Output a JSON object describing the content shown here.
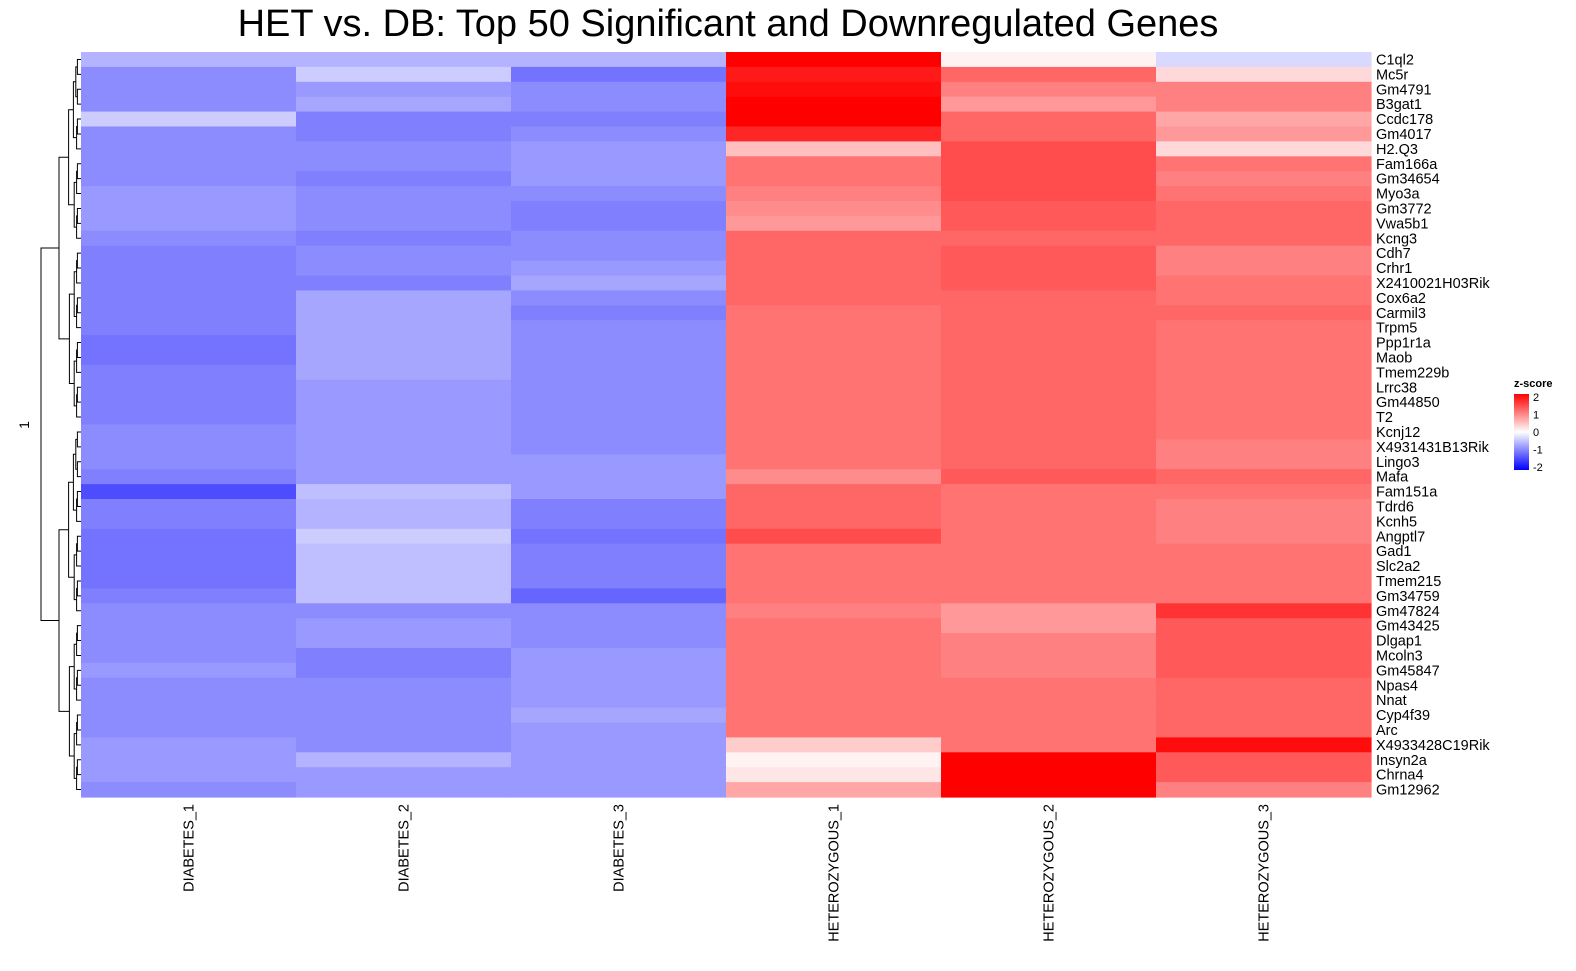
{
  "title": "HET vs. DB: Top 50 Significant and Downregulated Genes",
  "chart_data": {
    "type": "heatmap",
    "title": "HET vs. DB: Top 50 Significant and Downregulated Genes",
    "columns": [
      "DIABETES_1",
      "DIABETES_2",
      "DIABETES_3",
      "HETEROZYGOUS_1",
      "HETEROZYGOUS_2",
      "HETEROZYGOUS_3"
    ],
    "rows": [
      "C1ql2",
      "Mc5r",
      "Gm4791",
      "B3gat1",
      "Ccdc178",
      "Gm4017",
      "H2.Q3",
      "Fam166a",
      "Gm34654",
      "Myo3a",
      "Gm3772",
      "Vwa5b1",
      "Kcng3",
      "Cdh7",
      "Crhr1",
      "X2410021H03Rik",
      "Cox6a2",
      "Carmil3",
      "Trpm5",
      "Ppp1r1a",
      "Maob",
      "Tmem229b",
      "Lrrc38",
      "Gm44850",
      "T2",
      "Kcnj12",
      "X4931431B13Rik",
      "Lingo3",
      "Mafa",
      "Fam151a",
      "Tdrd6",
      "Kcnh5",
      "Angptl7",
      "Gad1",
      "Slc2a2",
      "Tmem215",
      "Gm34759",
      "Gm47824",
      "Gm43425",
      "Dlgap1",
      "Mcoln3",
      "Gm45847",
      "Npas4",
      "Nnat",
      "Cyp4f39",
      "Arc",
      "X4933428C19Rik",
      "Insyn2a",
      "Chrna4",
      "Gm12962"
    ],
    "values": [
      [
        -0.6,
        -0.6,
        -0.6,
        2.0,
        0.1,
        -0.3
      ],
      [
        -0.9,
        -0.4,
        -1.1,
        1.8,
        1.2,
        0.3
      ],
      [
        -0.9,
        -0.8,
        -0.9,
        1.9,
        1.0,
        1.0
      ],
      [
        -0.9,
        -0.7,
        -0.9,
        2.1,
        0.8,
        1.0
      ],
      [
        -0.4,
        -1.0,
        -1.0,
        2.0,
        1.2,
        0.7
      ],
      [
        -0.9,
        -1.0,
        -0.9,
        1.7,
        1.2,
        0.8
      ],
      [
        -0.9,
        -0.9,
        -0.8,
        0.5,
        1.4,
        0.3
      ],
      [
        -0.9,
        -0.9,
        -0.8,
        1.1,
        1.4,
        1.1
      ],
      [
        -0.9,
        -1.0,
        -0.8,
        1.1,
        1.4,
        1.0
      ],
      [
        -0.8,
        -0.9,
        -0.9,
        1.0,
        1.4,
        1.1
      ],
      [
        -0.8,
        -0.9,
        -1.0,
        0.9,
        1.3,
        1.2
      ],
      [
        -0.8,
        -0.9,
        -1.0,
        0.8,
        1.3,
        1.2
      ],
      [
        -0.9,
        -1.0,
        -0.9,
        1.2,
        1.2,
        1.2
      ],
      [
        -1.0,
        -0.9,
        -0.9,
        1.2,
        1.3,
        1.0
      ],
      [
        -1.0,
        -0.9,
        -0.8,
        1.2,
        1.3,
        1.0
      ],
      [
        -1.0,
        -1.0,
        -0.7,
        1.2,
        1.3,
        1.1
      ],
      [
        -1.0,
        -0.7,
        -0.9,
        1.2,
        1.2,
        1.1
      ],
      [
        -1.0,
        -0.7,
        -1.0,
        1.1,
        1.2,
        1.2
      ],
      [
        -1.0,
        -0.7,
        -0.9,
        1.1,
        1.2,
        1.1
      ],
      [
        -1.1,
        -0.7,
        -0.9,
        1.1,
        1.2,
        1.1
      ],
      [
        -1.1,
        -0.7,
        -0.9,
        1.1,
        1.2,
        1.1
      ],
      [
        -1.0,
        -0.7,
        -0.9,
        1.1,
        1.2,
        1.1
      ],
      [
        -1.0,
        -0.8,
        -0.9,
        1.1,
        1.2,
        1.1
      ],
      [
        -1.0,
        -0.8,
        -0.9,
        1.1,
        1.2,
        1.1
      ],
      [
        -1.0,
        -0.8,
        -0.9,
        1.1,
        1.2,
        1.1
      ],
      [
        -0.9,
        -0.8,
        -0.9,
        1.1,
        1.2,
        1.1
      ],
      [
        -0.9,
        -0.8,
        -0.9,
        1.1,
        1.2,
        1.0
      ],
      [
        -0.9,
        -0.8,
        -0.8,
        1.1,
        1.2,
        1.0
      ],
      [
        -1.0,
        -0.8,
        -0.8,
        0.9,
        1.3,
        1.2
      ],
      [
        -1.4,
        -0.5,
        -0.8,
        1.2,
        1.1,
        1.1
      ],
      [
        -1.0,
        -0.6,
        -1.0,
        1.2,
        1.1,
        1.0
      ],
      [
        -1.0,
        -0.6,
        -1.0,
        1.2,
        1.1,
        1.0
      ],
      [
        -1.1,
        -0.4,
        -1.1,
        1.4,
        1.1,
        1.0
      ],
      [
        -1.1,
        -0.5,
        -1.0,
        1.1,
        1.1,
        1.1
      ],
      [
        -1.1,
        -0.5,
        -1.0,
        1.1,
        1.1,
        1.1
      ],
      [
        -1.1,
        -0.5,
        -1.0,
        1.1,
        1.1,
        1.1
      ],
      [
        -1.0,
        -0.5,
        -1.2,
        1.1,
        1.1,
        1.1
      ],
      [
        -0.9,
        -0.9,
        -0.9,
        1.0,
        0.8,
        1.6
      ],
      [
        -0.9,
        -0.8,
        -0.9,
        1.1,
        0.8,
        1.3
      ],
      [
        -0.9,
        -0.8,
        -0.9,
        1.1,
        1.0,
        1.3
      ],
      [
        -0.9,
        -1.0,
        -0.8,
        1.1,
        1.0,
        1.3
      ],
      [
        -0.8,
        -1.0,
        -0.8,
        1.1,
        1.0,
        1.3
      ],
      [
        -0.9,
        -0.9,
        -0.8,
        1.1,
        1.1,
        1.2
      ],
      [
        -0.9,
        -0.9,
        -0.8,
        1.1,
        1.1,
        1.2
      ],
      [
        -0.9,
        -0.9,
        -0.7,
        1.1,
        1.1,
        1.2
      ],
      [
        -0.9,
        -0.9,
        -0.8,
        1.1,
        1.1,
        1.2
      ],
      [
        -0.8,
        -0.9,
        -0.8,
        0.4,
        1.1,
        1.9
      ],
      [
        -0.8,
        -0.6,
        -0.8,
        0.1,
        2.0,
        1.3
      ],
      [
        -0.8,
        -0.8,
        -0.8,
        0.2,
        2.0,
        1.3
      ],
      [
        -0.9,
        -0.8,
        -0.8,
        0.7,
        2.1,
        1.0
      ]
    ],
    "color_scale": {
      "min": -2,
      "mid": 0,
      "max": 2,
      "low_color": "#0000ff",
      "mid_color": "#ffffff",
      "high_color": "#ff0000"
    },
    "legend": {
      "title": "z-score",
      "ticks": [
        "2",
        "1",
        "0",
        "-1",
        "-2"
      ],
      "placement": "right"
    },
    "row_annotation": "1",
    "row_dendrogram": true,
    "grid": false
  }
}
